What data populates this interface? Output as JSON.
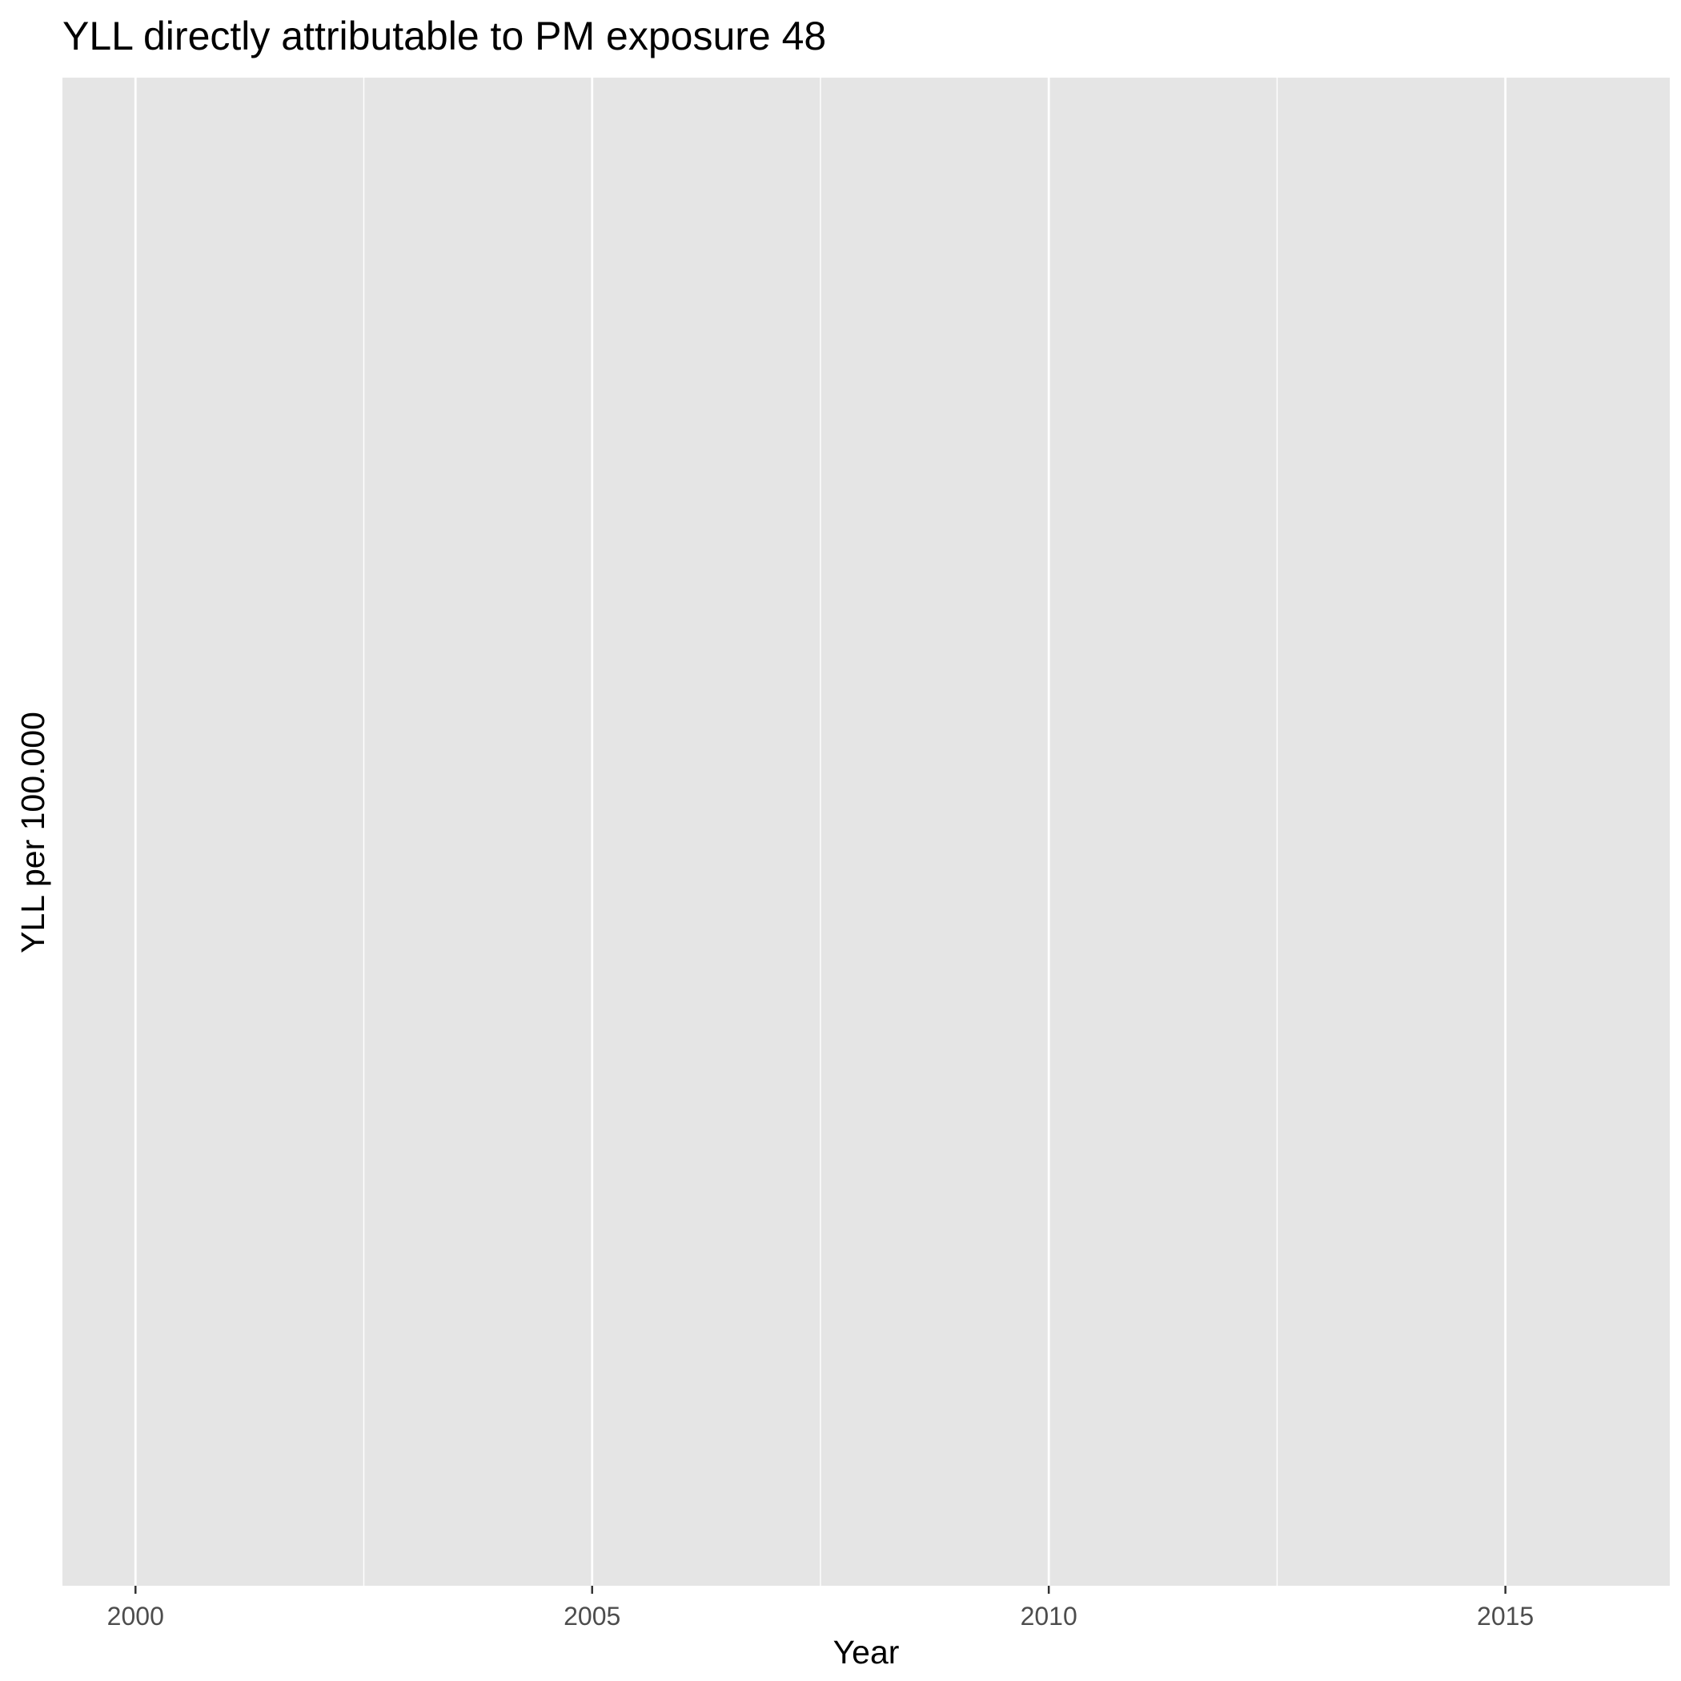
{
  "chart_data": {
    "type": "line",
    "title": "YLL directly attributable to PM exposure 48",
    "xlabel": "Year",
    "ylabel": "YLL per 100.000",
    "xlim": [
      1999.2,
      2016.8
    ],
    "x_major_ticks": [
      2000,
      2005,
      2010,
      2015
    ],
    "x_tick_labels": [
      "2000",
      "2005",
      "2010",
      "2015"
    ],
    "x_minor_ticks": [
      2002.5,
      2007.5,
      2012.5
    ],
    "y_tick_labels": [],
    "series": [],
    "grid": true,
    "legend": "none"
  },
  "colors": {
    "panel_background": "#e5e5e5",
    "gridline": "#ffffff",
    "tick_label": "#4d4d4d",
    "text": "#000000"
  }
}
